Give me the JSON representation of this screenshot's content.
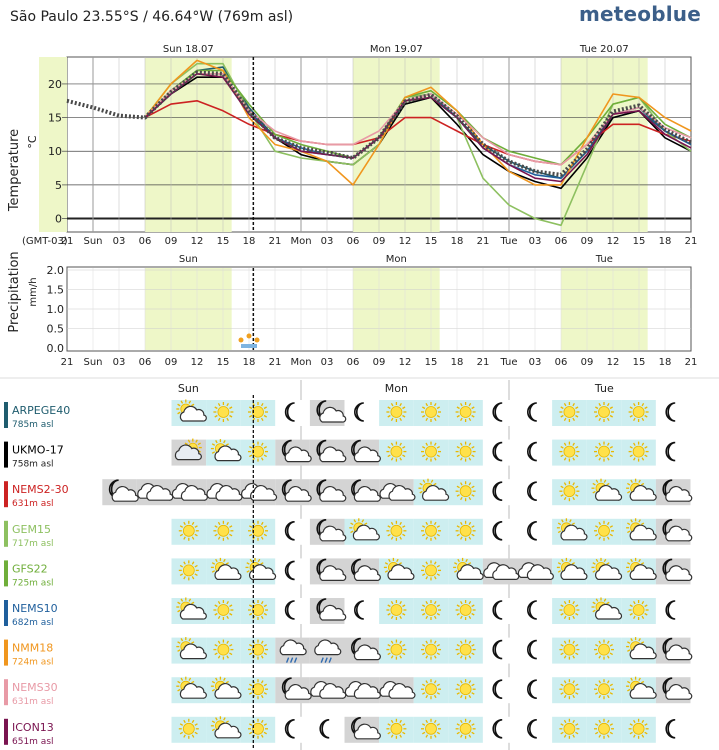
{
  "header": {
    "location": "São Paulo  23.55°S / 46.64°W (769m asl)",
    "brand": "meteoblue"
  },
  "timezone_label": "(GMT-03)",
  "days": [
    "Sun 18.07",
    "Mon 19.07",
    "Tue 20.07"
  ],
  "days_short": [
    "Sun",
    "Mon",
    "Tue"
  ],
  "x_tick_labels": [
    "21",
    "Sun",
    "03",
    "06",
    "09",
    "12",
    "15",
    "18",
    "21",
    "Mon",
    "03",
    "06",
    "09",
    "12",
    "15",
    "18",
    "21",
    "Tue",
    "03",
    "06",
    "09",
    "12",
    "15",
    "18",
    "21"
  ],
  "chart_data": [
    {
      "type": "line",
      "title": "",
      "ylabel": "Temperature",
      "yunit": "°C",
      "xlabel": "",
      "ylim": [
        -2,
        24
      ],
      "yticks": [
        0,
        5,
        10,
        15,
        20
      ],
      "x_unit": "hours since Sat 21:00",
      "xlim": [
        0,
        72
      ],
      "daylight_hours": [
        [
          9,
          19
        ],
        [
          33,
          43
        ],
        [
          57,
          67
        ]
      ],
      "now_hour": 21.5,
      "series": [
        {
          "name": "ARPEGE40",
          "color": "#1f5c6e",
          "x": [
            0,
            3,
            6,
            9,
            12,
            15,
            18,
            21,
            24,
            27,
            30,
            33,
            36,
            39,
            42,
            45,
            48,
            51,
            54,
            57,
            60,
            63,
            66,
            69,
            72
          ],
          "values": [
            null,
            null,
            null,
            15,
            19,
            22,
            22.5,
            16.5,
            12,
            10,
            9.5,
            9,
            12,
            17,
            18,
            15,
            11,
            8.5,
            7,
            6,
            10,
            15,
            16,
            13,
            11
          ]
        },
        {
          "name": "UKMO-17",
          "color": "#000000",
          "x": [
            0,
            3,
            6,
            9,
            12,
            15,
            18,
            21,
            24,
            27,
            30,
            33,
            36,
            39,
            42,
            45,
            48,
            51,
            54,
            57,
            60,
            63,
            66,
            69,
            72
          ],
          "values": [
            null,
            null,
            null,
            15,
            18.5,
            21,
            21,
            16,
            12,
            9.5,
            8.5,
            8,
            11,
            17,
            18,
            14,
            9.5,
            7,
            5.5,
            4.5,
            9,
            15,
            16,
            12,
            10
          ]
        },
        {
          "name": "NEMS2-30",
          "color": "#cc2222",
          "x": [
            0,
            3,
            6,
            9,
            12,
            15,
            18,
            21,
            24,
            27,
            30,
            33,
            36,
            39,
            42,
            45,
            48,
            51,
            54,
            57,
            60,
            63,
            66,
            69,
            72
          ],
          "values": [
            null,
            null,
            null,
            15,
            17,
            17.5,
            16,
            14,
            12.5,
            11.5,
            11,
            11,
            12,
            15,
            15,
            13,
            11,
            9.5,
            8.5,
            8,
            11,
            14,
            14,
            12.5,
            11.5
          ]
        },
        {
          "name": "GEM15",
          "color": "#8dc060",
          "x": [
            0,
            3,
            6,
            9,
            12,
            15,
            18,
            21,
            24,
            27,
            30,
            33,
            36,
            39,
            42,
            45,
            48,
            51,
            54,
            57,
            60,
            63,
            66,
            69,
            72
          ],
          "values": [
            null,
            null,
            null,
            15,
            20,
            23,
            23,
            16,
            10,
            9,
            8.5,
            8,
            11,
            18,
            18.5,
            15,
            6,
            2,
            0,
            -1,
            8,
            17,
            18,
            13,
            10
          ]
        },
        {
          "name": "GFS22",
          "color": "#6fae3a",
          "x": [
            0,
            3,
            6,
            9,
            12,
            15,
            18,
            21,
            24,
            27,
            30,
            33,
            36,
            39,
            42,
            45,
            48,
            51,
            54,
            57,
            60,
            63,
            66,
            69,
            72
          ],
          "values": [
            null,
            null,
            null,
            15,
            19,
            22,
            22,
            17,
            12.5,
            11,
            10,
            9,
            12,
            18,
            19,
            16,
            12,
            10,
            9,
            8,
            12,
            17,
            18,
            14,
            12
          ]
        },
        {
          "name": "NEMS10",
          "color": "#1f5f9c",
          "x": [
            0,
            3,
            6,
            9,
            12,
            15,
            18,
            21,
            24,
            27,
            30,
            33,
            36,
            39,
            42,
            45,
            48,
            51,
            54,
            57,
            60,
            63,
            66,
            69,
            72
          ],
          "values": [
            null,
            null,
            null,
            15,
            18.5,
            21.5,
            21.5,
            16,
            12,
            10.5,
            9.5,
            9,
            12,
            17.5,
            18.5,
            15,
            10.5,
            8,
            6.5,
            6,
            10,
            15.5,
            16.5,
            13,
            11
          ]
        },
        {
          "name": "NMM18",
          "color": "#f0961e",
          "x": [
            0,
            3,
            6,
            9,
            12,
            15,
            18,
            21,
            24,
            27,
            30,
            33,
            36,
            39,
            42,
            45,
            48,
            51,
            54,
            57,
            60,
            63,
            66,
            69,
            72
          ],
          "values": [
            null,
            null,
            null,
            15,
            20,
            23.5,
            22,
            15,
            11,
            10,
            8.5,
            5,
            11,
            18,
            19.5,
            16,
            11,
            7,
            5,
            5,
            12,
            18.5,
            18,
            15,
            13
          ]
        },
        {
          "name": "NEMS30",
          "color": "#e89aa6",
          "x": [
            0,
            3,
            6,
            9,
            12,
            15,
            18,
            21,
            24,
            27,
            30,
            33,
            36,
            39,
            42,
            45,
            48,
            51,
            54,
            57,
            60,
            63,
            66,
            69,
            72
          ],
          "values": [
            null,
            null,
            null,
            15,
            19,
            21.5,
            21.5,
            16,
            13,
            11.5,
            11,
            11,
            13,
            17.5,
            18.5,
            15.5,
            12,
            9.5,
            8.5,
            8,
            11,
            15.5,
            16.5,
            13.5,
            12
          ]
        },
        {
          "name": "ICON13",
          "color": "#7a1450",
          "x": [
            0,
            3,
            6,
            9,
            12,
            15,
            18,
            21,
            24,
            27,
            30,
            33,
            36,
            39,
            42,
            45,
            48,
            51,
            54,
            57,
            60,
            63,
            66,
            69,
            72
          ],
          "values": [
            null,
            null,
            null,
            15,
            18.5,
            21.5,
            21,
            15.5,
            12,
            10,
            9.5,
            9,
            12,
            17.5,
            18,
            15,
            10.5,
            8,
            6,
            5.5,
            9.5,
            15.5,
            16,
            12.5,
            10.5
          ]
        },
        {
          "name": "Mean",
          "color": "#4a4a4a",
          "style": "dotted",
          "x": [
            0,
            3,
            6,
            9,
            12,
            15,
            18,
            21,
            24,
            27,
            30,
            33,
            36,
            39,
            42,
            45,
            48,
            51,
            54,
            57,
            60,
            63,
            66,
            69,
            72
          ],
          "values": [
            17.5,
            16.5,
            15.3,
            15,
            18.8,
            21.7,
            21.5,
            15.9,
            12,
            10.5,
            9.8,
            9,
            12,
            17.4,
            18.4,
            15.2,
            11,
            8.5,
            7,
            6.5,
            10.3,
            15.9,
            16.8,
            13.2,
            11.3
          ]
        }
      ]
    },
    {
      "type": "bar",
      "title": "",
      "ylabel": "Precipitation",
      "yunit": "mm/h",
      "xlabel": "",
      "ylim": [
        0,
        2.1
      ],
      "yticks": [
        "2.0",
        "1.5",
        "1.0",
        "0.5",
        "0.0"
      ],
      "x": [
        0,
        3,
        6,
        9,
        12,
        15,
        18,
        21,
        24,
        27,
        30,
        33,
        36,
        39,
        42,
        45,
        48,
        51,
        54,
        57,
        60,
        63,
        66,
        69,
        72
      ],
      "values": [
        0,
        0,
        0,
        0,
        0,
        0,
        0,
        0.05,
        0,
        0,
        0,
        0,
        0,
        0,
        0,
        0,
        0,
        0,
        0,
        0,
        0,
        0,
        0,
        0,
        0
      ]
    }
  ],
  "models": [
    {
      "name": "ARPEGE40",
      "alt": "785m asl",
      "color": "#1f5c6e",
      "icons": [
        null,
        null,
        null,
        "sun-cloud",
        "sun",
        "sun",
        "moon",
        "moon-cloud",
        "moon",
        "sun",
        "sun",
        "sun",
        "moon",
        "moon",
        "sun",
        "sun",
        "sun",
        "moon"
      ]
    },
    {
      "name": "UKMO-17",
      "alt": "758m asl",
      "color": "#000000",
      "icons": [
        null,
        null,
        null,
        "cloud-sun",
        "sun-cloud",
        "sun",
        "moon-cloud",
        "moon-cloud",
        "moon-cloud",
        "sun",
        "sun",
        "sun",
        "moon",
        "moon",
        "sun",
        "sun",
        "sun",
        "moon"
      ]
    },
    {
      "name": "NEMS2-30",
      "alt": "631m asl",
      "color": "#cc2222",
      "icons": [
        null,
        "moon-cloud",
        "cloud",
        "cloud",
        "cloud",
        "cloud",
        "moon-cloud",
        "moon-cloud",
        "moon-cloud",
        "cloud",
        "sun-cloud",
        "sun",
        "moon",
        "moon",
        "sun",
        "sun-cloud",
        "sun-cloud",
        "moon-cloud"
      ]
    },
    {
      "name": "GEM15",
      "alt": "717m asl",
      "color": "#8dc060",
      "icons": [
        null,
        null,
        null,
        "sun",
        "sun",
        "sun",
        "moon",
        "moon-cloud",
        "sun-cloud",
        "sun",
        "sun",
        "sun",
        "moon",
        "moon",
        "sun-cloud",
        "sun",
        "sun-cloud",
        "moon-cloud"
      ]
    },
    {
      "name": "GFS22",
      "alt": "725m asl",
      "color": "#6fae3a",
      "icons": [
        null,
        null,
        null,
        "sun",
        "sun-cloud",
        "sun-cloud",
        "moon",
        "moon-cloud",
        "moon-cloud",
        "sun-cloud",
        "sun",
        "sun-cloud",
        "cloud",
        "cloud",
        "sun-cloud",
        "sun-cloud",
        "sun-cloud",
        "moon-cloud"
      ]
    },
    {
      "name": "NEMS10",
      "alt": "682m asl",
      "color": "#1f5f9c",
      "icons": [
        null,
        null,
        null,
        "sun-cloud",
        "sun",
        "sun",
        "moon",
        "moon-cloud",
        "moon",
        "sun",
        "sun",
        "sun",
        "moon",
        "moon",
        "sun",
        "sun-cloud",
        "sun",
        "moon"
      ]
    },
    {
      "name": "NMM18",
      "alt": "724m asl",
      "color": "#f0961e",
      "icons": [
        null,
        null,
        null,
        "sun-cloud",
        "sun",
        "sun",
        "cloud-rain",
        "cloud-rain",
        "moon-cloud",
        "sun",
        "sun",
        "sun",
        "moon",
        "moon",
        "sun",
        "sun",
        "sun-cloud",
        "moon-cloud"
      ]
    },
    {
      "name": "NEMS30",
      "alt": "631m asl",
      "color": "#e89aa6",
      "icons": [
        null,
        null,
        null,
        "sun-cloud",
        "sun-cloud",
        "sun",
        "moon-cloud",
        "cloud",
        "cloud",
        "cloud",
        "sun",
        "sun",
        "moon",
        "moon",
        "sun",
        "sun",
        "sun-cloud",
        "moon-cloud"
      ]
    },
    {
      "name": "ICON13",
      "alt": "651m asl",
      "color": "#7a1450",
      "icons": [
        null,
        null,
        null,
        "sun",
        "sun-cloud",
        "sun",
        "moon",
        "moon",
        "moon-cloud",
        "sun",
        "sun",
        "sun",
        "moon",
        "moon",
        "sun",
        "sun",
        "sun",
        "moon"
      ]
    }
  ]
}
